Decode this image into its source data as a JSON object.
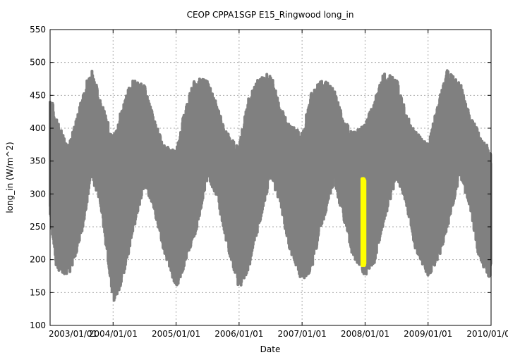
{
  "chart_data": {
    "type": "scatter",
    "title": "CEOP CPPA1SGP E15_Ringwood  long_in",
    "xlabel": "Date",
    "ylabel": "long_in (W/m^2)",
    "ylim": [
      100,
      550
    ],
    "xlim": [
      "2003/01/01",
      "2010/01/01"
    ],
    "x_ticks": [
      "2003/01/01",
      "2004/01/01",
      "2005/01/01",
      "2006/01/01",
      "2007/01/01",
      "2008/01/01",
      "2009/01/01",
      "2010/01/01"
    ],
    "y_ticks": [
      100,
      150,
      200,
      250,
      300,
      350,
      400,
      450,
      500,
      550
    ],
    "grid": true,
    "series": [
      {
        "name": "long_in",
        "color": "#808080",
        "description_envelope": {
          "x_years": [
            2003.0,
            2003.1,
            2003.3,
            2003.5,
            2003.65,
            2003.8,
            2004.0,
            2004.15,
            2004.3,
            2004.5,
            2004.65,
            2004.8,
            2005.0,
            2005.15,
            2005.3,
            2005.5,
            2005.65,
            2005.8,
            2006.0,
            2006.15,
            2006.3,
            2006.5,
            2006.65,
            2006.8,
            2007.0,
            2007.15,
            2007.3,
            2007.5,
            2007.65,
            2007.8,
            2008.0,
            2008.15,
            2008.3,
            2008.5,
            2008.65,
            2008.8,
            2009.0,
            2009.15,
            2009.3,
            2009.5,
            2009.65,
            2009.8,
            2010.0
          ],
          "y_max": [
            440,
            400,
            360,
            430,
            480,
            430,
            370,
            420,
            460,
            450,
            400,
            360,
            350,
            420,
            460,
            460,
            420,
            380,
            360,
            430,
            460,
            470,
            420,
            390,
            380,
            440,
            460,
            450,
            400,
            380,
            390,
            430,
            470,
            460,
            410,
            380,
            360,
            420,
            475,
            460,
            410,
            380,
            350
          ],
          "y_min": [
            280,
            200,
            190,
            250,
            340,
            300,
            150,
            180,
            250,
            330,
            290,
            230,
            170,
            210,
            250,
            340,
            310,
            240,
            170,
            200,
            260,
            340,
            300,
            230,
            180,
            200,
            260,
            330,
            280,
            220,
            190,
            210,
            270,
            340,
            300,
            230,
            190,
            210,
            260,
            340,
            300,
            220,
            180
          ]
        }
      },
      {
        "name": "highlight",
        "color": "#ffff00",
        "x_years": [
          2007.95,
          2008.0
        ],
        "y_range": [
          190,
          325
        ]
      }
    ]
  }
}
